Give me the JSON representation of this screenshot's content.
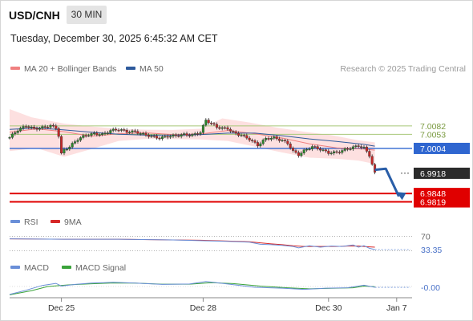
{
  "header": {
    "symbol": "USD/CNH",
    "interval": "30 MIN",
    "datetime": "Tuesday, December 30, 2025 6:45:32 AM CET"
  },
  "legend_main": [
    {
      "label": "MA 20 + Bollinger Bands",
      "color": "#f08080"
    },
    {
      "label": "MA 50",
      "color": "#2e5a9c"
    }
  ],
  "legend_rsi": [
    {
      "label": "RSI",
      "color": "#6a8fd8"
    },
    {
      "label": "9MA",
      "color": "#d62728"
    }
  ],
  "legend_macd": [
    {
      "label": "MACD",
      "color": "#6a8fd8"
    },
    {
      "label": "MACD Signal",
      "color": "#3aa33a"
    }
  ],
  "credit": "Research © 2025 Trading Central",
  "colors": {
    "resistance": "#a8c878",
    "pivot": "#2f66d0",
    "support": "#e00000",
    "current_badge": "#2b2b2b",
    "bollinger_fill": "#fde0e0",
    "candle_up": "#2a8a2a",
    "candle_down": "#c62828",
    "arrow": "#2a5ea8"
  },
  "chart_data": [
    {
      "type": "candlestick",
      "title": "USD/CNH 30 MIN",
      "x_ticks": [
        "Dec 25",
        "Dec 28",
        "Dec 30",
        "Jan 7"
      ],
      "x_tick_index": [
        19,
        71,
        117,
        142
      ],
      "n_periods": 150,
      "ylim": [
        6.979,
        7.024
      ],
      "levels": [
        {
          "label": "7.0082",
          "value": 7.0082,
          "kind": "resistance"
        },
        {
          "label": "7.0053",
          "value": 7.0053,
          "kind": "resistance"
        },
        {
          "label": "7.0004",
          "value": 7.0004,
          "kind": "pivot"
        },
        {
          "label": "6.9918",
          "value": 6.9918,
          "kind": "current"
        },
        {
          "label": "6.9848",
          "value": 6.9848,
          "kind": "support"
        },
        {
          "label": "6.9819",
          "value": 6.9819,
          "kind": "support"
        }
      ],
      "close_path": [
        [
          0,
          7.0042
        ],
        [
          3,
          7.0068
        ],
        [
          6,
          7.0082
        ],
        [
          9,
          7.0072
        ],
        [
          12,
          7.0076
        ],
        [
          15,
          7.0083
        ],
        [
          17,
          7.0075
        ],
        [
          18,
          7.0048
        ],
        [
          19,
          6.9985
        ],
        [
          20,
          6.9999
        ],
        [
          22,
          7.001
        ],
        [
          25,
          7.0036
        ],
        [
          28,
          7.005
        ],
        [
          31,
          7.0055
        ],
        [
          34,
          7.0052
        ],
        [
          37,
          7.0066
        ],
        [
          40,
          7.007
        ],
        [
          43,
          7.0062
        ],
        [
          46,
          7.0062
        ],
        [
          49,
          7.0053
        ],
        [
          52,
          7.0046
        ],
        [
          55,
          7.004
        ],
        [
          58,
          7.0046
        ],
        [
          61,
          7.0048
        ],
        [
          64,
          7.0052
        ],
        [
          67,
          7.005
        ],
        [
          70,
          7.006
        ],
        [
          72,
          7.0102
        ],
        [
          74,
          7.009
        ],
        [
          76,
          7.0078
        ],
        [
          78,
          7.0074
        ],
        [
          80,
          7.0073
        ],
        [
          82,
          7.0058
        ],
        [
          85,
          7.005
        ],
        [
          88,
          7.0036
        ],
        [
          91,
          7.0015
        ],
        [
          94,
          7.0038
        ],
        [
          97,
          7.0041
        ],
        [
          100,
          7.0031
        ],
        [
          102,
          7.0022
        ],
        [
          104,
          6.9994
        ],
        [
          106,
          6.9982
        ],
        [
          108,
          6.9996
        ],
        [
          111,
          7.001
        ],
        [
          114,
          7.0001
        ],
        [
          117,
          6.9989
        ],
        [
          120,
          6.999
        ],
        [
          123,
          7.0
        ],
        [
          126,
          7.0008
        ],
        [
          128,
          7.0013
        ],
        [
          130,
          7.0006
        ],
        [
          132,
          6.998
        ],
        [
          134,
          6.9918
        ]
      ],
      "forecast_path": [
        [
          134,
          6.993
        ],
        [
          138,
          6.9934
        ],
        [
          144,
          6.9831
        ]
      ],
      "ma50_path": [
        [
          0,
          7.007
        ],
        [
          10,
          7.0075
        ],
        [
          20,
          7.0068
        ],
        [
          30,
          7.006
        ],
        [
          40,
          7.0053
        ],
        [
          50,
          7.005
        ],
        [
          60,
          7.005
        ],
        [
          70,
          7.0052
        ],
        [
          80,
          7.0057
        ],
        [
          90,
          7.0057
        ],
        [
          100,
          7.0048
        ],
        [
          110,
          7.0037
        ],
        [
          120,
          7.0028
        ],
        [
          130,
          7.0018
        ],
        [
          134,
          7.0012
        ]
      ],
      "ma20_path": [
        [
          0,
          7.006
        ],
        [
          10,
          7.0072
        ],
        [
          20,
          7.0062
        ],
        [
          30,
          7.0046
        ],
        [
          40,
          7.0055
        ],
        [
          50,
          7.0058
        ],
        [
          60,
          7.0052
        ],
        [
          70,
          7.0054
        ],
        [
          80,
          7.0066
        ],
        [
          90,
          7.0055
        ],
        [
          100,
          7.004
        ],
        [
          110,
          7.002
        ],
        [
          120,
          7.0006
        ],
        [
          130,
          7.0002
        ],
        [
          134,
          6.9998
        ]
      ],
      "bb_upper_path": [
        [
          0,
          7.014
        ],
        [
          8,
          7.0112
        ],
        [
          20,
          7.009
        ],
        [
          30,
          7.008
        ],
        [
          40,
          7.0072
        ],
        [
          50,
          7.0069
        ],
        [
          60,
          7.0068
        ],
        [
          70,
          7.0072
        ],
        [
          78,
          7.0108
        ],
        [
          88,
          7.0094
        ],
        [
          98,
          7.0076
        ],
        [
          108,
          7.0062
        ],
        [
          118,
          7.005
        ],
        [
          128,
          7.0032
        ],
        [
          134,
          7.0025
        ]
      ],
      "bb_lower_path": [
        [
          0,
          6.9995
        ],
        [
          10,
          7.0005
        ],
        [
          20,
          6.9975
        ],
        [
          30,
          7.0002
        ],
        [
          40,
          7.003
        ],
        [
          50,
          7.0037
        ],
        [
          60,
          7.0036
        ],
        [
          70,
          7.0035
        ],
        [
          80,
          7.003
        ],
        [
          90,
          7.001
        ],
        [
          100,
          6.999
        ],
        [
          110,
          6.9972
        ],
        [
          120,
          6.9968
        ],
        [
          128,
          6.9962
        ],
        [
          134,
          6.995
        ]
      ]
    },
    {
      "type": "line",
      "title": "RSI",
      "ylim": [
        20,
        80
      ],
      "levels": [
        {
          "label": "70",
          "value": 70,
          "dotted": true
        },
        {
          "label": "30",
          "value": 30,
          "dotted": true
        }
      ],
      "current_label": "33.35",
      "rsi_path": [
        [
          0,
          63
        ],
        [
          20,
          62
        ],
        [
          40,
          62
        ],
        [
          60,
          60
        ],
        [
          70,
          58
        ],
        [
          80,
          56
        ],
        [
          88,
          54
        ],
        [
          92,
          48
        ],
        [
          96,
          47
        ],
        [
          100,
          45
        ],
        [
          104,
          42
        ],
        [
          106,
          38
        ],
        [
          110,
          44
        ],
        [
          114,
          40
        ],
        [
          118,
          43
        ],
        [
          122,
          42
        ],
        [
          126,
          46
        ],
        [
          128,
          40
        ],
        [
          130,
          44
        ],
        [
          132,
          37
        ],
        [
          134,
          33.35
        ]
      ],
      "ma9_path": [
        [
          0,
          63
        ],
        [
          20,
          62
        ],
        [
          40,
          62
        ],
        [
          60,
          60
        ],
        [
          70,
          59
        ],
        [
          80,
          57
        ],
        [
          88,
          55
        ],
        [
          92,
          52
        ],
        [
          96,
          49
        ],
        [
          100,
          47
        ],
        [
          104,
          44
        ],
        [
          108,
          42
        ],
        [
          112,
          42
        ],
        [
          116,
          42
        ],
        [
          120,
          42
        ],
        [
          124,
          43
        ],
        [
          128,
          43
        ],
        [
          132,
          41
        ],
        [
          134,
          40
        ]
      ]
    },
    {
      "type": "line",
      "title": "MACD",
      "ylim": [
        -0.005,
        0.005
      ],
      "zero_label": "-0.00",
      "macd_path": [
        [
          0,
          -0.0038
        ],
        [
          6,
          -0.0018
        ],
        [
          12,
          0.0005
        ],
        [
          17,
          0.0015
        ],
        [
          19,
          0.0002
        ],
        [
          24,
          0.001
        ],
        [
          30,
          0.0016
        ],
        [
          38,
          0.002
        ],
        [
          46,
          0.0016
        ],
        [
          56,
          0.001
        ],
        [
          66,
          0.0012
        ],
        [
          72,
          0.0024
        ],
        [
          80,
          0.0012
        ],
        [
          90,
          -0.0004
        ],
        [
          100,
          -0.0008
        ],
        [
          108,
          -0.0014
        ],
        [
          116,
          -0.0008
        ],
        [
          124,
          -0.0006
        ],
        [
          130,
          0.0006
        ],
        [
          134,
          -0.0004
        ]
      ],
      "signal_path": [
        [
          0,
          -0.004
        ],
        [
          8,
          -0.002
        ],
        [
          14,
          0.0
        ],
        [
          22,
          0.0008
        ],
        [
          30,
          0.0013
        ],
        [
          38,
          0.0017
        ],
        [
          46,
          0.0016
        ],
        [
          56,
          0.0011
        ],
        [
          66,
          0.0011
        ],
        [
          74,
          0.0018
        ],
        [
          82,
          0.0014
        ],
        [
          92,
          0.0002
        ],
        [
          102,
          -0.0006
        ],
        [
          110,
          -0.0011
        ],
        [
          118,
          -0.0009
        ],
        [
          126,
          -0.0006
        ],
        [
          130,
          0.0002
        ],
        [
          134,
          -0.0001
        ]
      ]
    }
  ]
}
